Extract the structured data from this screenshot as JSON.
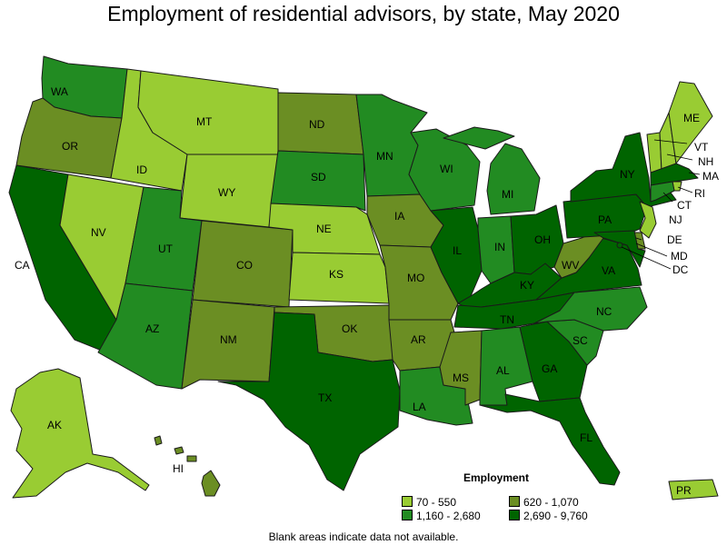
{
  "title": "Employment of residential advisors, by state, May 2020",
  "legend": {
    "title": "Employment",
    "classes": [
      {
        "key": "c1",
        "label": "70 - 550",
        "color": "#99cc33"
      },
      {
        "key": "c2",
        "label": "620 - 1,070",
        "color": "#6b8e23"
      },
      {
        "key": "c3",
        "label": "1,160 - 2,680",
        "color": "#228b22"
      },
      {
        "key": "c4",
        "label": "2,690 - 9,760",
        "color": "#006400"
      }
    ]
  },
  "footnote": "Blank areas indicate data not available.",
  "states": [
    {
      "abbr": "WA",
      "class": "c3"
    },
    {
      "abbr": "OR",
      "class": "c2"
    },
    {
      "abbr": "CA",
      "class": "c4"
    },
    {
      "abbr": "ID",
      "class": "c1"
    },
    {
      "abbr": "NV",
      "class": "c1"
    },
    {
      "abbr": "MT",
      "class": "c1"
    },
    {
      "abbr": "WY",
      "class": "c1"
    },
    {
      "abbr": "UT",
      "class": "c3"
    },
    {
      "abbr": "AZ",
      "class": "c3"
    },
    {
      "abbr": "CO",
      "class": "c2"
    },
    {
      "abbr": "NM",
      "class": "c2"
    },
    {
      "abbr": "ND",
      "class": "c2"
    },
    {
      "abbr": "SD",
      "class": "c3"
    },
    {
      "abbr": "NE",
      "class": "c1"
    },
    {
      "abbr": "KS",
      "class": "c1"
    },
    {
      "abbr": "OK",
      "class": "c2"
    },
    {
      "abbr": "TX",
      "class": "c4"
    },
    {
      "abbr": "MN",
      "class": "c3"
    },
    {
      "abbr": "IA",
      "class": "c2"
    },
    {
      "abbr": "MO",
      "class": "c2"
    },
    {
      "abbr": "AR",
      "class": "c2"
    },
    {
      "abbr": "LA",
      "class": "c3"
    },
    {
      "abbr": "WI",
      "class": "c3"
    },
    {
      "abbr": "IL",
      "class": "c4"
    },
    {
      "abbr": "MI",
      "class": "c3"
    },
    {
      "abbr": "IN",
      "class": "c3"
    },
    {
      "abbr": "OH",
      "class": "c4"
    },
    {
      "abbr": "KY",
      "class": "c4"
    },
    {
      "abbr": "TN",
      "class": "c4"
    },
    {
      "abbr": "MS",
      "class": "c2"
    },
    {
      "abbr": "AL",
      "class": "c3"
    },
    {
      "abbr": "GA",
      "class": "c4"
    },
    {
      "abbr": "FL",
      "class": "c4"
    },
    {
      "abbr": "SC",
      "class": "c3"
    },
    {
      "abbr": "NC",
      "class": "c3"
    },
    {
      "abbr": "VA",
      "class": "c4"
    },
    {
      "abbr": "WV",
      "class": "c2"
    },
    {
      "abbr": "PA",
      "class": "c4"
    },
    {
      "abbr": "NY",
      "class": "c4"
    },
    {
      "abbr": "VT",
      "class": "c1"
    },
    {
      "abbr": "NH",
      "class": "c1"
    },
    {
      "abbr": "ME",
      "class": "c1"
    },
    {
      "abbr": "MA",
      "class": "c4"
    },
    {
      "abbr": "RI",
      "class": "c1"
    },
    {
      "abbr": "CT",
      "class": "c3"
    },
    {
      "abbr": "NJ",
      "class": "c1"
    },
    {
      "abbr": "DE",
      "class": "c2"
    },
    {
      "abbr": "MD",
      "class": "c4"
    },
    {
      "abbr": "DC",
      "class": "c4"
    },
    {
      "abbr": "AK",
      "class": "c1"
    },
    {
      "abbr": "HI",
      "class": "c2"
    },
    {
      "abbr": "PR",
      "class": "c1"
    }
  ]
}
